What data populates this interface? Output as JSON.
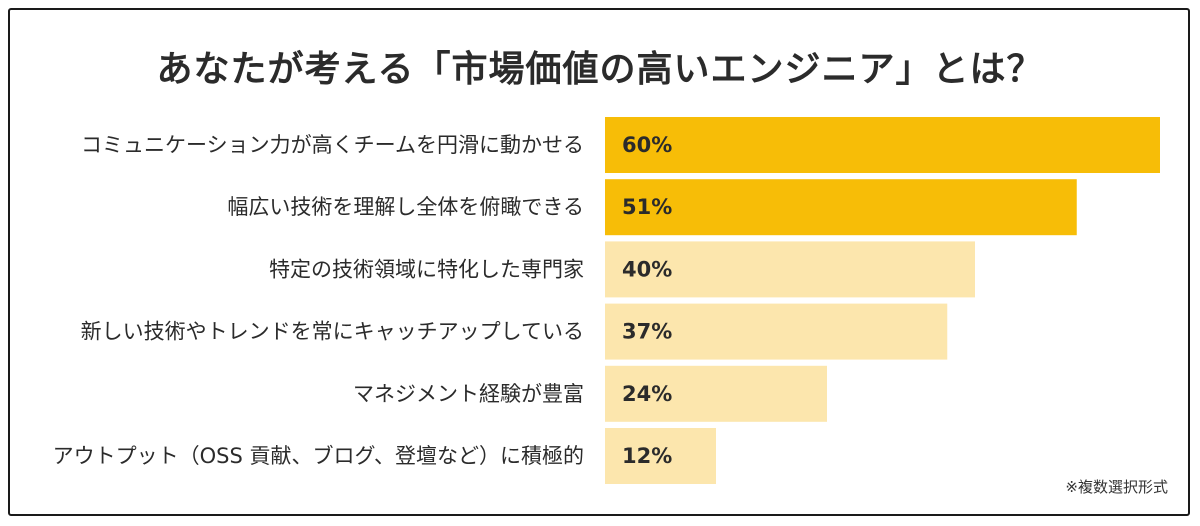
{
  "chart_data": {
    "type": "bar",
    "orientation": "horizontal",
    "title": "あなたが考える「市場価値の高いエンジニア」とは？",
    "categories": [
      "コミュニケーション力が高くチームを円滑に動かせる",
      "幅広い技術を理解し全体を俯瞰できる",
      "特定の技術領域に特化した専門家",
      "新しい技術やトレンドを常にキャッチアップしている",
      "マネジメント経験が豊富",
      "アウトプット（OSS 貢献、ブログ、登壇など）に積極的"
    ],
    "values": [
      60,
      51,
      40,
      37,
      24,
      12
    ],
    "value_labels": [
      "60%",
      "51%",
      "40%",
      "37%",
      "24%",
      "12%"
    ],
    "unit": "%",
    "xlim": [
      0,
      60
    ],
    "grid": false,
    "legend": "none",
    "highlight_count": 2,
    "colors": {
      "highlight": "#f7bd07",
      "normal": "#fce6ad",
      "text": "#2b2b2b"
    }
  },
  "footnote": "※複数選択形式"
}
